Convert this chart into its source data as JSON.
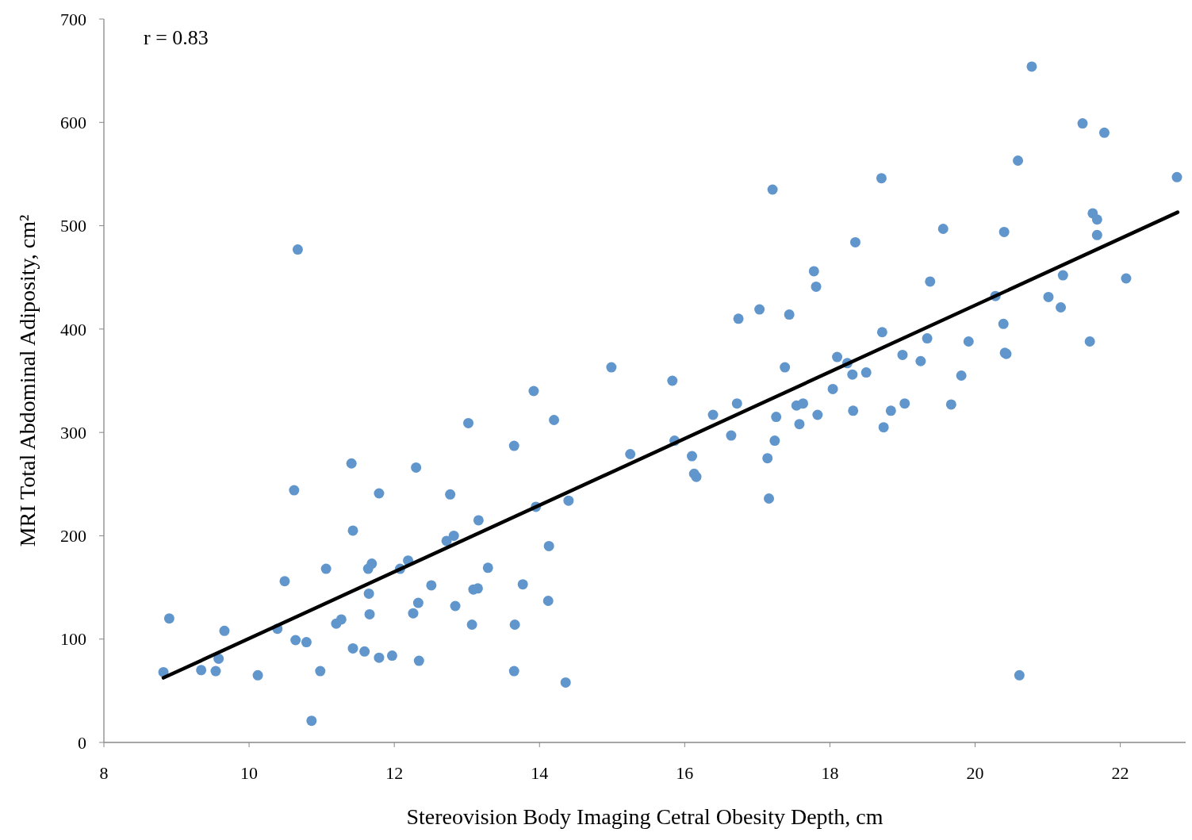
{
  "chart_data": {
    "type": "scatter",
    "xlabel": "Stereovision Body Imaging Cetral Obesity Depth, cm",
    "ylabel": "MRI Total Abdominal Adiposity, cm²",
    "annotations": [
      "r = 0.83"
    ],
    "xlim": [
      8,
      22.9
    ],
    "xticks": [
      8,
      10,
      12,
      14,
      16,
      18,
      20,
      22
    ],
    "ylim": [
      0,
      700
    ],
    "yticks": [
      0,
      100,
      200,
      300,
      400,
      500,
      600,
      700
    ],
    "grid": false,
    "series": [
      {
        "color": "#6096cc",
        "marker": "circle",
        "x": [
          8.82,
          8.9,
          9.34,
          9.54,
          9.58,
          9.66,
          10.12,
          10.39,
          10.49,
          10.62,
          10.64,
          10.67,
          10.79,
          10.86,
          10.98,
          11.06,
          11.2,
          11.27,
          11.41,
          11.43,
          11.43,
          11.59,
          11.64,
          11.65,
          11.66,
          11.69,
          11.79,
          11.79,
          11.97,
          12.08,
          12.19,
          12.26,
          12.3,
          12.33,
          12.34,
          12.51,
          12.72,
          12.77,
          12.82,
          12.84,
          13.02,
          13.07,
          13.09,
          13.15,
          13.16,
          13.29,
          13.65,
          13.65,
          13.66,
          13.77,
          13.92,
          13.95,
          14.12,
          14.13,
          14.2,
          14.36,
          14.4,
          14.99,
          15.25,
          15.83,
          15.86,
          16.1,
          16.13,
          16.16,
          16.39,
          16.64,
          16.72,
          16.74,
          17.03,
          17.14,
          17.16,
          17.21,
          17.24,
          17.26,
          17.38,
          17.44,
          17.54,
          17.58,
          17.63,
          17.78,
          17.81,
          17.83,
          18.04,
          18.1,
          18.24,
          18.31,
          18.32,
          18.35,
          18.5,
          18.71,
          18.72,
          18.74,
          18.84,
          19.0,
          19.03,
          19.25,
          19.34,
          19.38,
          19.56,
          19.67,
          19.81,
          19.91,
          20.28,
          20.39,
          20.4,
          20.41,
          20.43,
          20.59,
          20.61,
          20.78,
          21.01,
          21.18,
          21.21,
          21.48,
          21.58,
          21.62,
          21.68,
          21.68,
          21.78,
          22.08,
          22.78
        ],
        "values": [
          68,
          120,
          70,
          69,
          81,
          108,
          65,
          110,
          156,
          244,
          99,
          477,
          97,
          21,
          69,
          168,
          115,
          119,
          270,
          205,
          91,
          88,
          168,
          144,
          124,
          173,
          241,
          82,
          84,
          168,
          176,
          125,
          266,
          135,
          79,
          152,
          195,
          240,
          200,
          132,
          309,
          114,
          148,
          149,
          215,
          169,
          287,
          69,
          114,
          153,
          340,
          228,
          137,
          190,
          312,
          58,
          234,
          363,
          279,
          350,
          292,
          277,
          260,
          257,
          317,
          297,
          328,
          410,
          419,
          275,
          236,
          535,
          292,
          315,
          363,
          414,
          326,
          308,
          328,
          456,
          441,
          317,
          342,
          373,
          367,
          356,
          321,
          484,
          358,
          546,
          397,
          305,
          321,
          375,
          328,
          369,
          391,
          446,
          497,
          327,
          355,
          388,
          432,
          405,
          494,
          377,
          376,
          563,
          65,
          654,
          431,
          421,
          452,
          599,
          388,
          512,
          506,
          491,
          590,
          449,
          547
        ]
      },
      {
        "type": "line",
        "color": "#000000",
        "x": [
          8.82,
          22.79
        ],
        "values": [
          62.5,
          513
        ]
      }
    ]
  }
}
